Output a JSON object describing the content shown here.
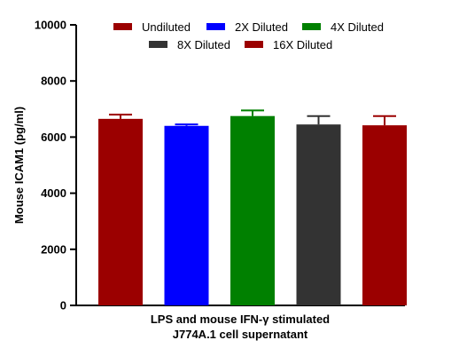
{
  "chart_data": {
    "type": "bar",
    "title": "",
    "ylabel": "Mouse ICAM1 (pg/ml)",
    "xlabel_lines": [
      "LPS and mouse IFN-γ stimulated",
      "J774A.1 cell supernatant"
    ],
    "ylim": [
      0,
      10000
    ],
    "yticks": [
      0,
      2000,
      4000,
      6000,
      8000,
      10000
    ],
    "ytick_labels": [
      "0",
      "2000",
      "4000",
      "6000",
      "8000",
      "10000"
    ],
    "grid": false,
    "legend_placement": "top",
    "series": [
      {
        "name": "Undiluted",
        "value": 6650,
        "error": 150,
        "color": "#9b0000"
      },
      {
        "name": "2X Diluted",
        "value": 6400,
        "error": 50,
        "color": "#0000ff"
      },
      {
        "name": "4X Diluted",
        "value": 6750,
        "error": 200,
        "color": "#008000"
      },
      {
        "name": "8X Diluted",
        "value": 6450,
        "error": 300,
        "color": "#333333"
      },
      {
        "name": "16X Diluted",
        "value": 6420,
        "error": 330,
        "color": "#9b0000"
      }
    ]
  }
}
